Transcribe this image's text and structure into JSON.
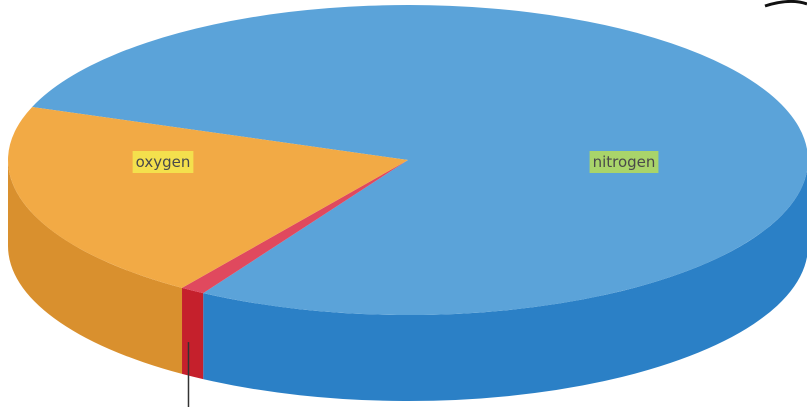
{
  "chart_data": {
    "type": "pie",
    "style": "3d",
    "title": "",
    "slices": [
      {
        "label": "nitrogen",
        "value": 78,
        "color": "#5ba3d9",
        "side_color": "#2b80c6",
        "label_bg": "#a9d46a"
      },
      {
        "label": "oxygen",
        "value": 21,
        "color": "#f2aa45",
        "side_color": "#d9902e",
        "label_bg": "#f4e04d"
      },
      {
        "label": "",
        "value": 1,
        "color": "#e0495e",
        "side_color": "#c5202c",
        "label_bg": ""
      }
    ]
  }
}
